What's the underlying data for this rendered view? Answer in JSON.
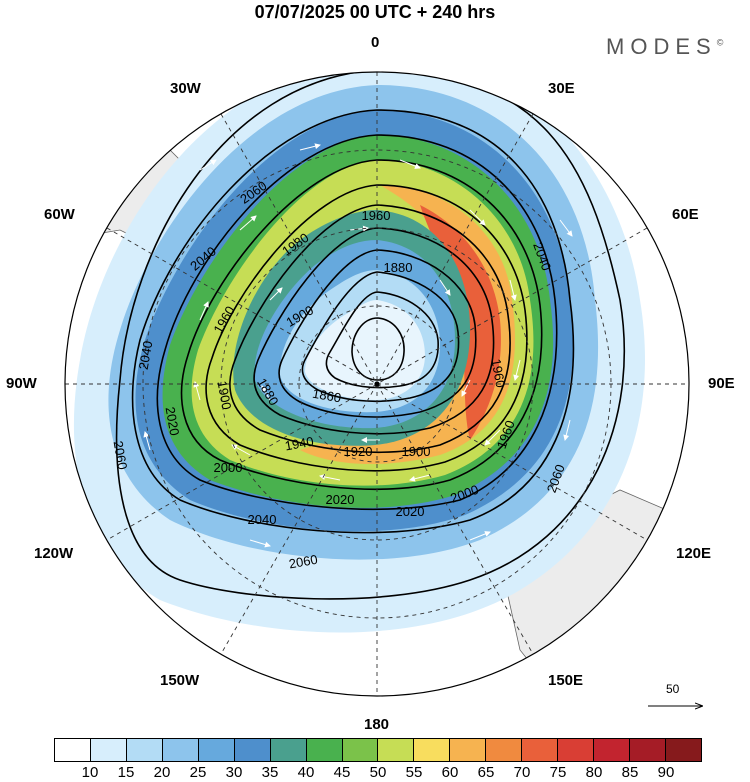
{
  "title": "07/07/2025  00 UTC  + 240 hrs",
  "brand": {
    "name": "MODES",
    "mark": "©"
  },
  "longitude_labels": {
    "n": "0",
    "e30": "30E",
    "e60": "60E",
    "e90": "90E",
    "e120": "120E",
    "e150": "150E",
    "s": "180",
    "w150": "150W",
    "w120": "120W",
    "w90": "90W",
    "w60": "60W",
    "w30": "30W"
  },
  "contours": [
    {
      "level": "2060"
    },
    {
      "level": "2040"
    },
    {
      "level": "2020"
    },
    {
      "level": "2000"
    },
    {
      "level": "1980"
    },
    {
      "level": "1960"
    },
    {
      "level": "1940"
    },
    {
      "level": "1920"
    },
    {
      "level": "1900"
    },
    {
      "level": "1880"
    },
    {
      "level": "1860"
    }
  ],
  "contour_labels": [
    "2060",
    "2060",
    "2060",
    "2060",
    "2040",
    "2040",
    "2040",
    "2040",
    "2020",
    "2020",
    "2020",
    "2000",
    "2000",
    "1980",
    "1960",
    "1960",
    "1960",
    "1960",
    "1940",
    "1920",
    "1900",
    "1900",
    "1900",
    "1880",
    "1880",
    "1860"
  ],
  "reference_vector": {
    "value": "50"
  },
  "colorbar": {
    "colors": [
      "#ffffff",
      "#d7eefc",
      "#b3dcf5",
      "#8dc4ec",
      "#66a9dd",
      "#4e8fcc",
      "#4aa08e",
      "#49b14e",
      "#7bc24a",
      "#c6dd55",
      "#f8dd5e",
      "#f6b350",
      "#f08a3f",
      "#e9603a",
      "#d93e34",
      "#c2242f",
      "#a51c26",
      "#861a1c"
    ],
    "ticks": [
      "10",
      "15",
      "20",
      "25",
      "30",
      "35",
      "40",
      "45",
      "50",
      "55",
      "60",
      "65",
      "70",
      "75",
      "80",
      "85",
      "90"
    ]
  }
}
